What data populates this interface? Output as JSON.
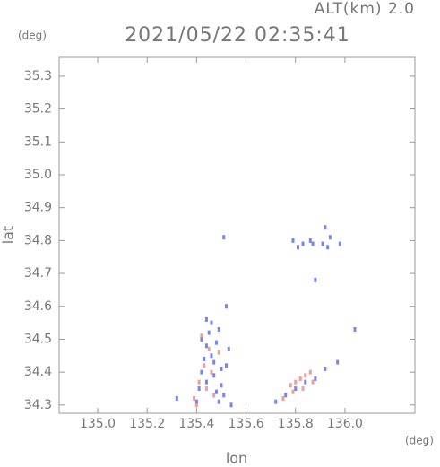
{
  "chart_data": {
    "type": "scatter",
    "title": "2021/05/22 02:35:41",
    "annotation": "ALT(km) 2.0",
    "y_unit": "(deg)",
    "x_unit": "(deg)",
    "xlabel": "lon",
    "ylabel": "lat",
    "xlim": [
      134.844,
      136.283
    ],
    "ylim": [
      34.275,
      35.357
    ],
    "xticks": [
      {
        "value": 135.0,
        "label": "135.0"
      },
      135.2,
      135.4,
      135.6,
      135.8,
      {
        "value": 136.0,
        "label": "136.0"
      }
    ],
    "yticks": [
      34.3,
      34.4,
      34.5,
      34.6,
      34.7,
      34.8,
      34.9,
      {
        "value": 35.0,
        "label": "35.0"
      },
      35.1,
      35.2,
      35.3
    ],
    "series": [
      {
        "color": "#4a5ee8",
        "x": [
          135.32,
          135.4,
          135.41,
          135.42,
          135.43,
          135.44,
          135.45,
          135.46,
          135.47,
          135.48,
          135.49,
          135.5,
          135.52,
          135.53,
          135.54,
          135.42,
          135.44,
          135.46,
          135.48,
          135.5,
          135.51,
          135.44,
          135.47,
          135.49,
          135.52,
          135.51,
          135.88,
          136.04,
          135.97,
          135.72,
          135.76,
          135.8,
          135.84,
          135.88,
          135.92,
          135.79,
          135.83,
          135.87,
          135.92,
          135.81,
          135.86,
          135.93,
          135.91,
          135.94,
          135.98
        ],
        "y": [
          34.32,
          34.31,
          34.35,
          34.4,
          34.44,
          34.48,
          34.52,
          34.45,
          34.39,
          34.34,
          34.31,
          34.36,
          34.42,
          34.47,
          34.3,
          34.5,
          34.56,
          34.55,
          34.49,
          34.41,
          34.33,
          34.37,
          34.43,
          34.53,
          34.6,
          34.81,
          34.68,
          34.53,
          34.43,
          34.31,
          34.33,
          34.35,
          34.37,
          34.38,
          34.41,
          34.8,
          34.79,
          34.79,
          34.84,
          34.78,
          34.8,
          34.78,
          34.79,
          34.81,
          34.79
        ]
      },
      {
        "color": "#f07a7a",
        "x": [
          135.39,
          135.41,
          135.43,
          135.45,
          135.47,
          135.42,
          135.44,
          135.46,
          135.4,
          135.49,
          135.78,
          135.8,
          135.82,
          135.84,
          135.86,
          135.79,
          135.83,
          135.87,
          135.75
        ],
        "y": [
          34.32,
          34.37,
          34.42,
          34.47,
          34.33,
          34.51,
          34.35,
          34.4,
          34.3,
          34.46,
          34.36,
          34.37,
          34.38,
          34.39,
          34.4,
          34.34,
          34.35,
          34.37,
          34.32
        ]
      }
    ]
  }
}
